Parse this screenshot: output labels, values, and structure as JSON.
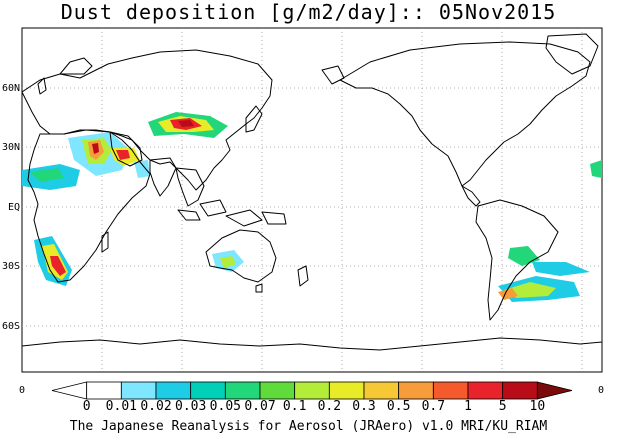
{
  "title": "Dust deposition [g/m2/day]:: 05Nov2015",
  "footer": "The Japanese Reanalysis for Aerosol (JRAero) v1.0 MRI/KU_RIAM",
  "map": {
    "lat_labels": [
      "60N",
      "30N",
      "EQ",
      "30S",
      "60S"
    ],
    "corner_labels": [
      "0",
      "0"
    ]
  },
  "colorbar": {
    "labels": [
      "0",
      "0.01",
      "0.02",
      "0.03",
      "0.05",
      "0.07",
      "0.1",
      "0.2",
      "0.3",
      "0.5",
      "0.7",
      "1",
      "5",
      "10"
    ],
    "colors": [
      "#ffffff",
      "#ffffff",
      "#7fe6ff",
      "#1ecce6",
      "#00d0b8",
      "#22d67a",
      "#5fdc3c",
      "#b4ec3a",
      "#e8ec28",
      "#f6c836",
      "#f79c3a",
      "#f45a2c",
      "#e8232b",
      "#b80c18",
      "#7b0a0a"
    ]
  },
  "dust_colors": {
    "c1": "#7fe6ff",
    "c2": "#1ecce6",
    "c3": "#22d67a",
    "c4": "#b4ec3a",
    "c5": "#e8ec28",
    "c6": "#f79c3a",
    "c7": "#e8232b",
    "c8": "#b80c18"
  }
}
